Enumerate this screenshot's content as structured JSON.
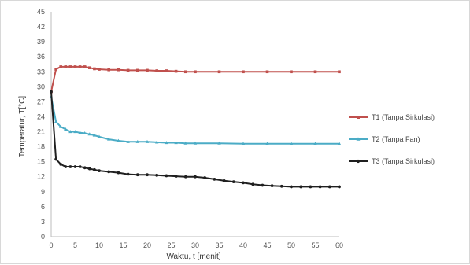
{
  "chart_data": {
    "type": "line",
    "title": "",
    "xlabel": "Waktu, t [menit]",
    "ylabel": "Temperatur, T[°C]",
    "xlim": [
      0,
      60
    ],
    "ylim": [
      0,
      45
    ],
    "x_ticks": [
      0,
      5,
      10,
      15,
      20,
      25,
      30,
      35,
      40,
      45,
      50,
      55,
      60
    ],
    "y_ticks": [
      0,
      3,
      6,
      9,
      12,
      15,
      18,
      21,
      24,
      27,
      30,
      33,
      36,
      39,
      42,
      45
    ],
    "legend_position": "right",
    "grid": false,
    "series": [
      {
        "name": "T1 (Tanpa Sirkulasi)",
        "color": "#c0504d",
        "marker": "square",
        "x": [
          0,
          1,
          2,
          3,
          4,
          5,
          6,
          7,
          8,
          9,
          10,
          12,
          14,
          16,
          18,
          20,
          22,
          24,
          26,
          28,
          30,
          35,
          40,
          45,
          50,
          55,
          60
        ],
        "y": [
          29,
          33.5,
          34,
          34,
          34,
          34,
          34,
          34,
          33.8,
          33.6,
          33.5,
          33.4,
          33.4,
          33.3,
          33.3,
          33.3,
          33.2,
          33.2,
          33.1,
          33,
          33,
          33,
          33,
          33,
          33,
          33,
          33
        ]
      },
      {
        "name": "T2 (Tanpa Fan)",
        "color": "#4bacc6",
        "marker": "triangle",
        "x": [
          0,
          1,
          2,
          3,
          4,
          5,
          6,
          7,
          8,
          9,
          10,
          12,
          14,
          16,
          18,
          20,
          22,
          24,
          26,
          28,
          30,
          35,
          40,
          45,
          50,
          55,
          60
        ],
        "y": [
          28,
          23,
          22,
          21.5,
          21,
          21,
          20.8,
          20.7,
          20.5,
          20.3,
          20,
          19.5,
          19.2,
          19,
          19,
          19,
          18.9,
          18.8,
          18.8,
          18.7,
          18.7,
          18.7,
          18.6,
          18.6,
          18.6,
          18.6,
          18.6
        ]
      },
      {
        "name": "T3 (Tanpa Sirkulasi)",
        "color": "#1f1f1f",
        "marker": "circle",
        "x": [
          0,
          1,
          2,
          3,
          4,
          5,
          6,
          7,
          8,
          9,
          10,
          12,
          14,
          16,
          18,
          20,
          22,
          24,
          26,
          28,
          30,
          32,
          34,
          36,
          38,
          40,
          42,
          44,
          46,
          48,
          50,
          52,
          54,
          56,
          58,
          60
        ],
        "y": [
          29,
          15.5,
          14.5,
          14,
          14,
          14,
          14,
          13.8,
          13.6,
          13.4,
          13.2,
          13,
          12.8,
          12.5,
          12.4,
          12.4,
          12.3,
          12.2,
          12.1,
          12,
          12,
          11.8,
          11.5,
          11.2,
          11,
          10.8,
          10.5,
          10.3,
          10.2,
          10.1,
          10,
          10,
          10,
          10,
          10,
          10
        ]
      }
    ]
  }
}
